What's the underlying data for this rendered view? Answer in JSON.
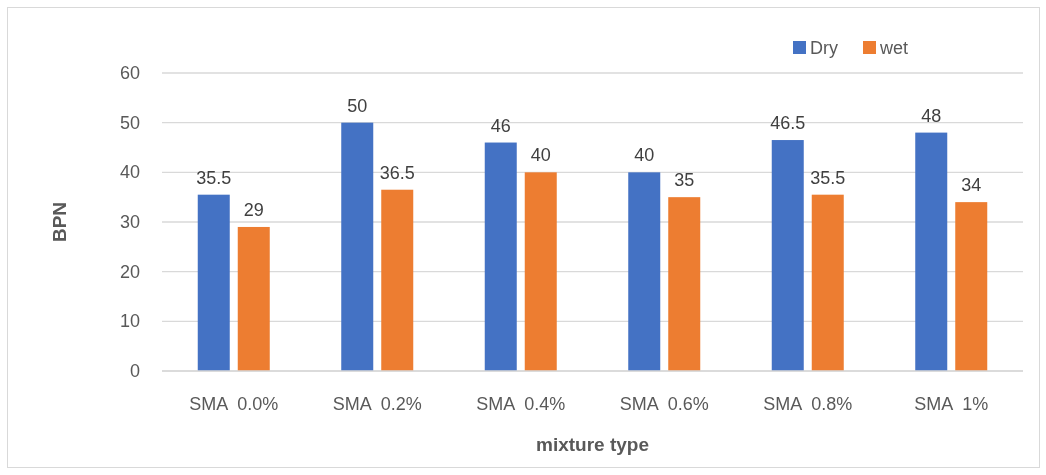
{
  "chart_data": {
    "type": "bar",
    "xlabel": "mixture type",
    "ylabel": "BPN",
    "categories": [
      "SMA  0.0%",
      "SMA  0.2%",
      "SMA  0.4%",
      "SMA  0.6%",
      "SMA  0.8%",
      "SMA  1%"
    ],
    "series": [
      {
        "name": "Dry",
        "color": "#4472c4",
        "values": [
          35.5,
          50,
          46,
          40,
          46.5,
          48
        ]
      },
      {
        "name": "wet",
        "color": "#ed7d31",
        "values": [
          29,
          36.5,
          40,
          35,
          35.5,
          34
        ]
      }
    ],
    "ylim": [
      0,
      60
    ],
    "yticks": [
      0,
      10,
      20,
      30,
      40,
      50,
      60
    ],
    "grid": "y",
    "legend": "top right",
    "data_labels": true
  }
}
